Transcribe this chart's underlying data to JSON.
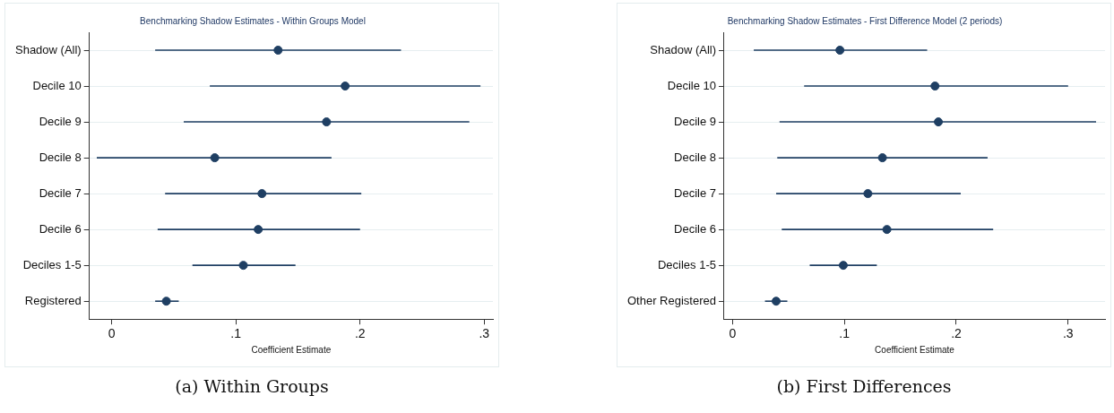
{
  "chart_data": [
    {
      "type": "scatter",
      "orientation": "horizontal",
      "title": "Benchmarking Shadow Estimates - Within Groups Model",
      "xlabel": "Coefficient Estimate",
      "categories": [
        "Shadow (All)",
        "Decile 10",
        "Decile 9",
        "Decile 8",
        "Decile 7",
        "Decile 6",
        "Deciles 1-5",
        "Registered"
      ],
      "values": [
        0.134,
        0.188,
        0.173,
        0.083,
        0.121,
        0.118,
        0.106,
        0.044
      ],
      "errors": [
        [
          0.035,
          0.233
        ],
        [
          0.079,
          0.297
        ],
        [
          0.058,
          0.288
        ],
        [
          -0.012,
          0.177
        ],
        [
          0.043,
          0.201
        ],
        [
          0.037,
          0.2
        ],
        [
          0.065,
          0.148
        ],
        [
          0.035,
          0.054
        ]
      ],
      "color": "#1f3f63",
      "marker": "circle",
      "grid": "y",
      "xlim": [
        -0.018,
        0.307
      ],
      "xticks": [
        0,
        {
          "value": 0.1,
          "label": ".1"
        },
        {
          "value": 0.2,
          "label": ".2"
        },
        {
          "value": 0.3,
          "label": ".3"
        }
      ],
      "annotations": [
        "(a) Within Groups"
      ]
    },
    {
      "type": "scatter",
      "orientation": "horizontal",
      "title": "Benchmarking Shadow Estimates - First Difference Model (2 periods)",
      "xlabel": "Coefficient Estimate",
      "categories": [
        "Shadow (All)",
        "Decile 10",
        "Decile 9",
        "Decile 8",
        "Decile 7",
        "Decile 6",
        "Deciles 1-5",
        "Other Registered"
      ],
      "values": [
        0.096,
        0.181,
        0.184,
        0.134,
        0.121,
        0.138,
        0.099,
        0.039
      ],
      "errors": [
        [
          0.019,
          0.174
        ],
        [
          0.064,
          0.3
        ],
        [
          0.042,
          0.325
        ],
        [
          0.04,
          0.228
        ],
        [
          0.039,
          0.204
        ],
        [
          0.044,
          0.233
        ],
        [
          0.069,
          0.129
        ],
        [
          0.029,
          0.049
        ]
      ],
      "color": "#1f3f63",
      "marker": "circle",
      "grid": "y",
      "xlim": [
        -0.0075,
        0.333
      ],
      "xticks": [
        0,
        {
          "value": 0.1,
          "label": ".1"
        },
        {
          "value": 0.2,
          "label": ".2"
        },
        {
          "value": 0.3,
          "label": ".3"
        }
      ],
      "annotations": [
        "(b) First Differences"
      ]
    }
  ]
}
